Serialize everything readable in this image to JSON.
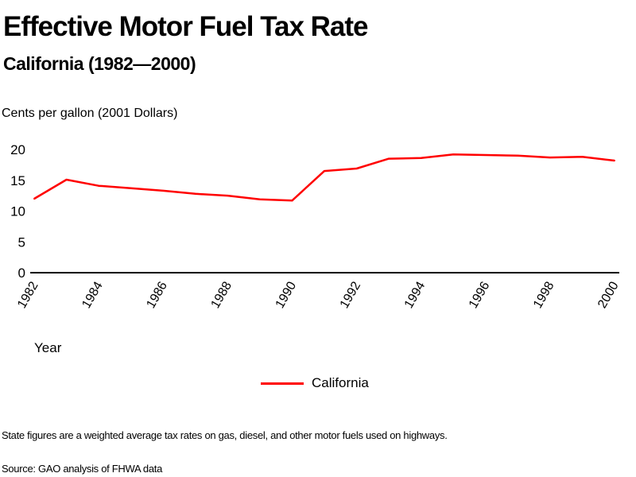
{
  "header": {
    "title": "Effective Motor Fuel Tax Rate",
    "subtitle": "California (1982—2000)"
  },
  "footer": {
    "note": "State figures are a weighted average tax rates on gas, diesel, and other motor fuels used on highways.",
    "source": "Source: GAO analysis of FHWA data"
  },
  "chart_data": {
    "type": "line",
    "title": "Effective Motor Fuel Tax Rate",
    "subtitle": "California (1982—2000)",
    "xlabel": "Year",
    "ylabel": "Cents per gallon (2001 Dollars)",
    "x": [
      1982,
      1983,
      1984,
      1985,
      1986,
      1987,
      1988,
      1989,
      1990,
      1991,
      1992,
      1993,
      1994,
      1995,
      1996,
      1997,
      1998,
      1999,
      2000
    ],
    "series": [
      {
        "name": "California",
        "color": "#ff0000",
        "values": [
          12.0,
          15.1,
          14.1,
          13.7,
          13.3,
          12.8,
          12.5,
          11.9,
          11.7,
          16.5,
          16.9,
          18.5,
          18.6,
          19.2,
          19.1,
          19.0,
          18.7,
          18.8,
          18.2
        ]
      }
    ],
    "xlim": [
      1982,
      2000
    ],
    "ylim": [
      0,
      20
    ],
    "yticks": [
      0,
      5,
      10,
      15,
      20
    ],
    "ytick_labels": [
      "0",
      "5",
      "10",
      "15",
      "20"
    ],
    "xticks": [
      1982,
      1984,
      1986,
      1988,
      1990,
      1992,
      1994,
      1996,
      1998,
      2000
    ],
    "xtick_labels": [
      "1982",
      "1984",
      "1986",
      "1988",
      "1990",
      "1992",
      "1994",
      "1996",
      "1998",
      "2000"
    ],
    "grid": false,
    "legend": {
      "position": "bottom-center",
      "entries": [
        "California"
      ]
    }
  }
}
